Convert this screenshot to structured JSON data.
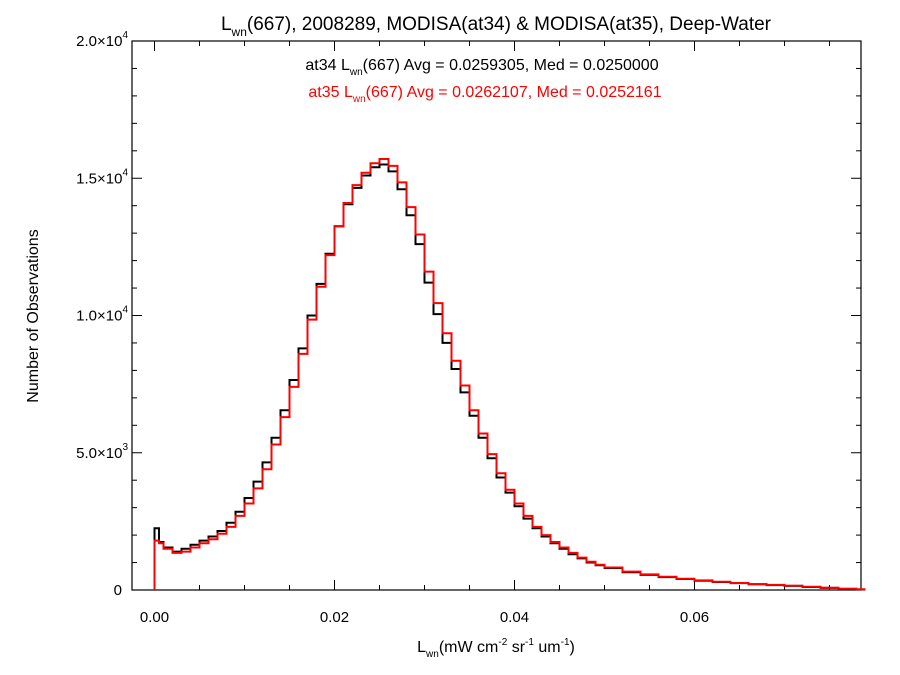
{
  "chart_data": {
    "type": "line",
    "title": {
      "prefix": "L",
      "prefix_sub": "wn",
      "rest": "(667), 2008289, MODISA(at34) & MODISA(at35), Deep-Water"
    },
    "xlabel": {
      "prefix": "L",
      "prefix_sub": "wn",
      "units_open": "(mW cm",
      "units_exp1": "-2",
      "units_mid1": " sr",
      "units_exp2": "-1",
      "units_mid2": " um",
      "units_exp3": "-1",
      "units_close": ")"
    },
    "ylabel": "Number of Observations",
    "xlim": [
      -0.0025,
      0.0785
    ],
    "ylim": [
      0,
      20000
    ],
    "x_ticks": [
      {
        "value": 0.0,
        "label": "0.00"
      },
      {
        "value": 0.02,
        "label": "0.02"
      },
      {
        "value": 0.04,
        "label": "0.04"
      },
      {
        "value": 0.06,
        "label": "0.06"
      }
    ],
    "y_ticks": [
      {
        "value": 0,
        "mant": "0",
        "exp": ""
      },
      {
        "value": 5000,
        "mant": "5.0×10",
        "exp": "3"
      },
      {
        "value": 10000,
        "mant": "1.0×10",
        "exp": "4"
      },
      {
        "value": 15000,
        "mant": "1.5×10",
        "exp": "4"
      },
      {
        "value": 20000,
        "mant": "2.0×10",
        "exp": "4"
      }
    ],
    "grid": false,
    "annotations": [
      {
        "pre": "at34 L",
        "sub": "wn",
        "post": "(667) Avg = 0.0259305, Med = 0.0250000",
        "color": "#000000"
      },
      {
        "pre": "at35 L",
        "sub": "wn",
        "post": "(667) Avg = 0.0262107, Med = 0.0252161",
        "color": "#ff0000"
      }
    ],
    "series": [
      {
        "color": "#000000",
        "x": [
          0.0,
          0.0005,
          0.001,
          0.002,
          0.003,
          0.004,
          0.005,
          0.006,
          0.007,
          0.008,
          0.009,
          0.01,
          0.011,
          0.012,
          0.013,
          0.014,
          0.015,
          0.016,
          0.017,
          0.018,
          0.019,
          0.02,
          0.021,
          0.022,
          0.023,
          0.024,
          0.025,
          0.026,
          0.027,
          0.028,
          0.029,
          0.03,
          0.031,
          0.032,
          0.033,
          0.034,
          0.035,
          0.036,
          0.037,
          0.038,
          0.039,
          0.04,
          0.041,
          0.042,
          0.043,
          0.044,
          0.045,
          0.046,
          0.047,
          0.048,
          0.049,
          0.05,
          0.052,
          0.054,
          0.056,
          0.058,
          0.06,
          0.062,
          0.064,
          0.066,
          0.068,
          0.07,
          0.072,
          0.074,
          0.076,
          0.078
        ],
        "values": [
          2250,
          1750,
          1550,
          1400,
          1500,
          1650,
          1800,
          1950,
          2150,
          2450,
          2850,
          3350,
          3950,
          4650,
          5550,
          6550,
          7650,
          8800,
          10000,
          11150,
          12250,
          13250,
          14050,
          14650,
          15100,
          15400,
          15500,
          15250,
          14600,
          13650,
          12600,
          11200,
          10050,
          9000,
          8050,
          7200,
          6350,
          5550,
          4800,
          4100,
          3550,
          3050,
          2600,
          2250,
          1950,
          1700,
          1500,
          1300,
          1150,
          1000,
          900,
          800,
          650,
          550,
          470,
          400,
          340,
          290,
          250,
          210,
          180,
          150,
          110,
          75,
          40,
          20
        ]
      },
      {
        "color": "#ff0000",
        "x": [
          0.0,
          0.0005,
          0.001,
          0.002,
          0.003,
          0.004,
          0.005,
          0.006,
          0.007,
          0.008,
          0.009,
          0.01,
          0.011,
          0.012,
          0.013,
          0.014,
          0.015,
          0.016,
          0.017,
          0.018,
          0.019,
          0.02,
          0.021,
          0.022,
          0.023,
          0.024,
          0.025,
          0.026,
          0.027,
          0.028,
          0.029,
          0.03,
          0.031,
          0.032,
          0.033,
          0.034,
          0.035,
          0.036,
          0.037,
          0.038,
          0.039,
          0.04,
          0.041,
          0.042,
          0.043,
          0.044,
          0.045,
          0.046,
          0.047,
          0.048,
          0.049,
          0.05,
          0.052,
          0.054,
          0.056,
          0.058,
          0.06,
          0.062,
          0.064,
          0.066,
          0.068,
          0.07,
          0.072,
          0.074,
          0.076,
          0.078
        ],
        "values": [
          1800,
          1700,
          1500,
          1350,
          1400,
          1550,
          1700,
          1850,
          2050,
          2300,
          2700,
          3150,
          3700,
          4400,
          5300,
          6300,
          7400,
          8600,
          9850,
          11050,
          12200,
          13250,
          14100,
          14750,
          15200,
          15550,
          15700,
          15450,
          14850,
          13950,
          12950,
          11600,
          10450,
          9350,
          8350,
          7450,
          6550,
          5700,
          4950,
          4250,
          3650,
          3150,
          2700,
          2300,
          2000,
          1750,
          1550,
          1350,
          1180,
          1030,
          920,
          820,
          670,
          570,
          480,
          410,
          350,
          300,
          255,
          215,
          185,
          155,
          115,
          80,
          45,
          25
        ]
      }
    ]
  }
}
